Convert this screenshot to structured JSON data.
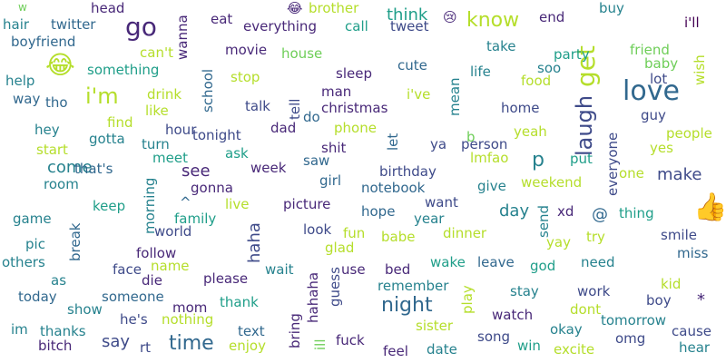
{
  "palette": {
    "dark_purple": "#482878",
    "indigo": "#3e4a89",
    "slate_blue": "#31688e",
    "teal": "#26828e",
    "sea_green": "#1f9e89",
    "green": "#35b779",
    "light_green": "#6ece58",
    "lime": "#b5de2b",
    "dark_violet": "#440154"
  },
  "words": [
    "w",
    "hair",
    "twitter",
    "boyfriend",
    "head",
    "go",
    "wanna",
    "eat",
    "everything",
    "😂",
    "brother",
    "call",
    "tweet",
    "think",
    "😢",
    "know",
    "end",
    "get",
    "buy",
    "i'll",
    "😂",
    "something",
    "i'm",
    "can't",
    "school",
    "movie",
    "house",
    "stop",
    "sleep",
    "cute",
    "take",
    "party",
    "soo",
    "friend",
    "baby",
    "wish",
    "life",
    "food",
    "lot",
    "love",
    "laugh",
    "help",
    "way",
    "tho",
    "drink",
    "like",
    "hour",
    "tonight",
    "talk",
    "tell",
    "man",
    "christmas",
    "i've",
    "mean",
    "home",
    "guy",
    "hey",
    "find",
    "gotta",
    "turn",
    "do",
    "dad",
    "phone",
    "yeah",
    "people",
    "start",
    "shit",
    "let",
    "ya",
    "person",
    "yes",
    "come",
    "that's",
    "meet",
    "ask",
    "saw",
    "lmfao",
    "p",
    "put",
    "room",
    "see",
    "week",
    "girl",
    "birthday",
    "one",
    "make",
    "gonna",
    "live",
    "picture",
    "notebook",
    "give",
    "weekend",
    "everyone",
    "keep",
    "morning",
    "want",
    "^",
    "family",
    "hope",
    "year",
    "day",
    "xd",
    "@",
    "thing",
    "👍",
    "game",
    "world",
    "haha",
    "look",
    "send",
    "dinner",
    "try",
    "pic",
    "break",
    "follow",
    "glad",
    "fun",
    "babe",
    "smile",
    "yay",
    "miss",
    "others",
    "face",
    "name",
    "wait",
    "hahaha",
    "use",
    "bed",
    "wake",
    "leave",
    "god",
    "need",
    "as",
    "die",
    "please",
    "guess",
    "remember",
    "kid",
    "today",
    "someone",
    "mom",
    "thank",
    "play",
    "stay",
    "work",
    "boy",
    "show",
    "he's",
    "nothing",
    "night",
    "dont",
    "cause",
    "im",
    "thanks",
    "text",
    "sister",
    "watch",
    "okay",
    "tomorrow",
    "say",
    "time",
    "bring",
    "ill",
    "fuck",
    "song",
    "omg",
    "bitch",
    "rt",
    "enjoy",
    "feel",
    "date",
    "win",
    "excite",
    "hear",
    "b",
    "*"
  ]
}
